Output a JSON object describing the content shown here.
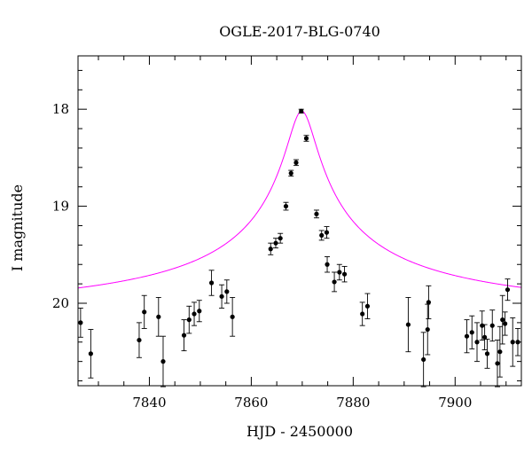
{
  "chart_data": {
    "type": "scatter",
    "title": "OGLE-2017-BLG-0740",
    "xlabel": "HJD - 2450000",
    "ylabel": "I magnitude",
    "xlim": [
      7826,
      7913
    ],
    "ylim": [
      20.85,
      17.45
    ],
    "y_inverted": true,
    "x_ticks": [
      7840,
      7860,
      7880,
      7900
    ],
    "y_ticks": [
      18,
      19,
      20
    ],
    "grid": false,
    "legend": "none",
    "point_color": "#000000",
    "model_color": "#ff00ff",
    "model": {
      "t0": 7869.9,
      "peak_mag": 18.02,
      "base_mag": 20.19,
      "tE": 2.6
    },
    "series": [
      {
        "x": [
          7826.5,
          7828.5,
          7838.0,
          7839.0,
          7841.8,
          7842.7,
          7846.8,
          7847.8,
          7848.8,
          7849.8,
          7852.2,
          7854.2,
          7855.2,
          7856.3,
          7863.8,
          7864.8,
          7865.7,
          7866.8,
          7867.8,
          7868.8,
          7869.8,
          7870.8,
          7872.8,
          7873.8,
          7874.8,
          7874.9,
          7876.3,
          7877.3,
          7878.3,
          7881.8,
          7882.8,
          7890.8,
          7893.8,
          7894.6,
          7894.8,
          7902.3,
          7903.3,
          7904.3,
          7905.3,
          7905.8,
          7906.3,
          7907.3,
          7908.3,
          7908.8,
          7909.3,
          7909.8,
          7910.3,
          7911.3,
          7912.3
        ],
        "y": [
          20.2,
          20.52,
          20.38,
          20.09,
          20.14,
          20.6,
          20.33,
          20.17,
          20.11,
          20.08,
          19.79,
          19.93,
          19.88,
          20.14,
          19.44,
          19.38,
          19.33,
          19.0,
          18.66,
          18.55,
          18.02,
          18.3,
          19.08,
          19.3,
          19.27,
          19.6,
          19.78,
          19.68,
          19.7,
          20.11,
          20.03,
          20.22,
          20.58,
          20.27,
          19.99,
          20.34,
          20.3,
          20.4,
          20.23,
          20.35,
          20.52,
          20.23,
          20.62,
          20.5,
          20.17,
          20.21,
          19.86,
          20.4,
          20.4
        ],
        "err": [
          0.15,
          0.25,
          0.18,
          0.17,
          0.2,
          0.26,
          0.16,
          0.14,
          0.12,
          0.11,
          0.13,
          0.12,
          0.12,
          0.2,
          0.06,
          0.05,
          0.05,
          0.04,
          0.03,
          0.03,
          0.02,
          0.03,
          0.04,
          0.05,
          0.06,
          0.08,
          0.1,
          0.08,
          0.08,
          0.12,
          0.13,
          0.28,
          0.28,
          0.26,
          0.17,
          0.17,
          0.17,
          0.2,
          0.15,
          0.13,
          0.15,
          0.16,
          0.24,
          0.26,
          0.25,
          0.12,
          0.11,
          0.25,
          0.14
        ]
      }
    ]
  }
}
